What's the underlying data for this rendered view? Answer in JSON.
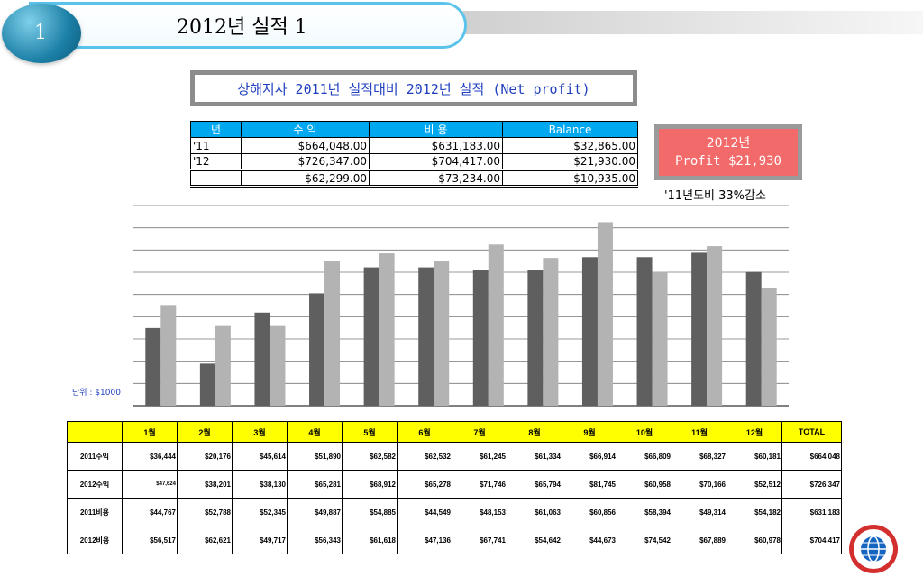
{
  "header": {
    "slide_number": "1",
    "title": "2012년  실적 1"
  },
  "report_title": "상해지사 2011년 실적대비 2012년 실적 (Net profit)",
  "summary_table": {
    "headers": [
      "년",
      "수  익",
      "비  용",
      "Balance"
    ],
    "rows": [
      [
        "'11",
        "$664,048.00",
        "$631,183.00",
        "$32,865.00"
      ],
      [
        "'12",
        "$726,347.00",
        "$704,417.00",
        "$21,930.00"
      ],
      [
        "",
        "$62,299.00",
        "$73,234.00",
        "-$10,935.00"
      ]
    ]
  },
  "profit_box": {
    "line1": "2012년",
    "line2": "Profit $21,930"
  },
  "profit_note": "'11년도비 33%감소",
  "chart_data": {
    "type": "bar",
    "title": "",
    "unit_label": "단위 : $1000",
    "categories": [
      "1월",
      "2월",
      "3월",
      "4월",
      "5월",
      "6월",
      "7월",
      "8월",
      "9월",
      "10월",
      "11월",
      "12월"
    ],
    "series": [
      {
        "values": [
          38.8,
          21.0,
          46.5,
          56.1,
          69.1,
          69.1,
          67.6,
          67.6,
          74.2,
          74.2,
          76.4,
          66.8
        ],
        "color": "#5f5f5f"
      },
      {
        "values": [
          50.3,
          39.8,
          39.8,
          72.5,
          76.1,
          72.5,
          80.5,
          73.8,
          91.7,
          66.8,
          79.7,
          58.7
        ],
        "color": "#b3b3b3"
      }
    ],
    "ylim": [
      0,
      100
    ],
    "grid": true
  },
  "data_table": {
    "headers": [
      "",
      "1월",
      "2월",
      "3월",
      "4월",
      "5월",
      "6월",
      "7월",
      "8월",
      "9월",
      "10월",
      "11월",
      "12월",
      "TOTAL"
    ],
    "rows": [
      [
        "2011수익",
        "$36,444",
        "$20,176",
        "$45,614",
        "$51,890",
        "$62,582",
        "$62,532",
        "$61,245",
        "$61,334",
        "$66,914",
        "$66,809",
        "$68,327",
        "$60,181",
        "$664,048"
      ],
      [
        "2012수익",
        "$47,624",
        "$38,201",
        "$38,130",
        "$65,281",
        "$68,912",
        "$65,278",
        "$71,746",
        "$65,794",
        "$81,745",
        "$60,958",
        "$70,166",
        "$52,512",
        "$726,347"
      ],
      [
        "2011비용",
        "$44,767",
        "$52,788",
        "$52,345",
        "$49,887",
        "$54,885",
        "$44,549",
        "$48,153",
        "$61,063",
        "$60,856",
        "$58,394",
        "$49,314",
        "$54,182",
        "$631,183"
      ],
      [
        "2012비용",
        "$56,517",
        "$62,621",
        "$49,717",
        "$56,343",
        "$61,618",
        "$47,136",
        "$67,741",
        "$54,642",
        "$44,673",
        "$74,542",
        "$67,889",
        "$60,978",
        "$704,417"
      ]
    ]
  }
}
